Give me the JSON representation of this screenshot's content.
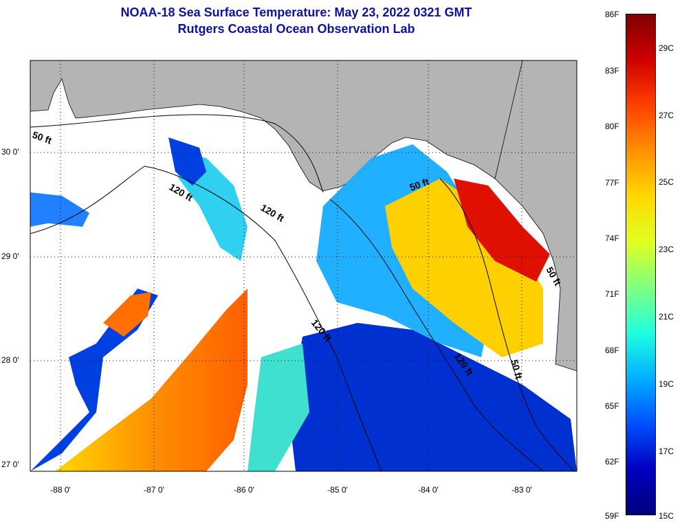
{
  "title": {
    "line1": "NOAA-18 Sea Surface Temperature:  May 23, 2022 0321 GMT",
    "line2": "Rutgers Coastal Ocean Observation Lab"
  },
  "map": {
    "land_color": "#b4b4b4",
    "nodata_color": "#ffffff",
    "x_ticks": [
      "-88 0'",
      "-87 0'",
      "-86 0'",
      "-85 0'",
      "-84 0'",
      "-83 0'"
    ],
    "y_ticks": [
      "30 0'",
      "29 0'",
      "28 0'",
      "27 0'"
    ],
    "contour_labels": [
      "50 ft",
      "120 ft",
      "120 ft",
      "50 ft",
      "120 ft",
      "50 ft",
      "120 ft",
      "50 ft"
    ]
  },
  "colorbar": {
    "fahrenheit_labels": [
      "86F",
      "83F",
      "80F",
      "77F",
      "74F",
      "71F",
      "68F",
      "65F",
      "62F",
      "59F"
    ],
    "celsius_labels": [
      "29C",
      "27C",
      "25C",
      "23C",
      "21C",
      "19C",
      "17C",
      "15C"
    ],
    "colors": [
      "#800000",
      "#d00000",
      "#ff4000",
      "#ff9000",
      "#ffd800",
      "#e0ff20",
      "#80ff80",
      "#20ffe0",
      "#00b0ff",
      "#0050ff",
      "#0000c0",
      "#000080"
    ]
  }
}
